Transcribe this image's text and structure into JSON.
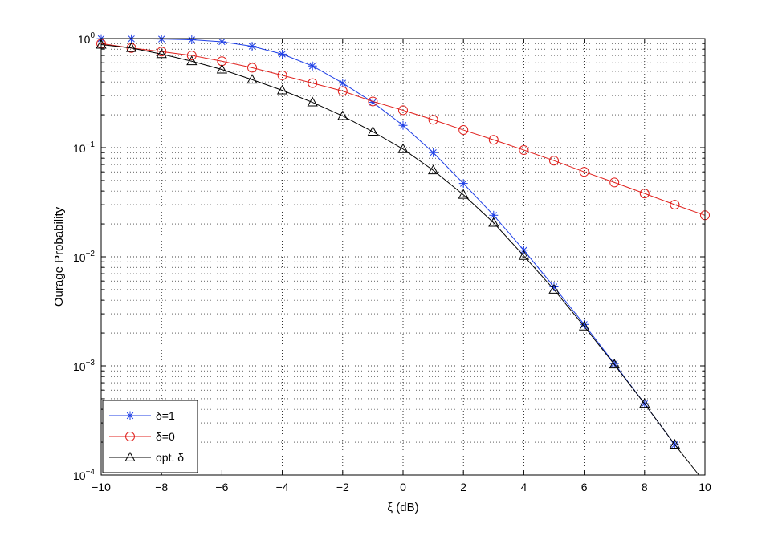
{
  "chart_data": {
    "type": "line",
    "title": "",
    "xlabel": "ξ (dB)",
    "ylabel": "Ourage Probability",
    "xlim": [
      -10,
      10
    ],
    "ylim": [
      0.0001,
      1
    ],
    "yscale": "log",
    "grid": true,
    "legend_position": "bottom-left",
    "x_ticks": [
      "−10",
      "−8",
      "−6",
      "−4",
      "−2",
      "0",
      "2",
      "4",
      "6",
      "8",
      "10"
    ],
    "y_ticks": [
      {
        "base": "10",
        "exp": "0"
      },
      {
        "base": "10",
        "exp": "−1"
      },
      {
        "base": "10",
        "exp": "−2"
      },
      {
        "base": "10",
        "exp": "−3"
      },
      {
        "base": "10",
        "exp": "−4"
      }
    ],
    "series": [
      {
        "name": "δ=1",
        "color": "#1f3fe6",
        "marker": "star",
        "x": [
          -10,
          -9,
          -8,
          -7,
          -6,
          -5,
          -4,
          -3,
          -2,
          -1,
          0,
          1,
          2,
          3,
          4,
          5,
          6,
          7,
          8,
          9
        ],
        "y": [
          0.998,
          0.995,
          0.99,
          0.975,
          0.935,
          0.85,
          0.72,
          0.56,
          0.39,
          0.26,
          0.16,
          0.09,
          0.047,
          0.024,
          0.0115,
          0.0053,
          0.0024,
          0.00105,
          0.00045,
          0.00019
        ]
      },
      {
        "name": "δ=0",
        "color": "#e0201c",
        "marker": "circle",
        "x": [
          -10,
          -9,
          -8,
          -7,
          -6,
          -5,
          -4,
          -3,
          -2,
          -1,
          0,
          1,
          2,
          3,
          4,
          5,
          6,
          7,
          8,
          9,
          10
        ],
        "y": [
          0.9,
          0.82,
          0.76,
          0.7,
          0.62,
          0.54,
          0.46,
          0.39,
          0.33,
          0.265,
          0.22,
          0.18,
          0.145,
          0.118,
          0.095,
          0.076,
          0.06,
          0.048,
          0.038,
          0.03,
          0.024
        ]
      },
      {
        "name": "opt. δ",
        "color": "#000000",
        "marker": "triangle",
        "x": [
          -10,
          -9,
          -8,
          -7,
          -6,
          -5,
          -4,
          -3,
          -2,
          -1,
          0,
          1,
          2,
          3,
          4,
          5,
          6,
          7,
          8,
          9,
          9.8
        ],
        "y": [
          0.88,
          0.82,
          0.72,
          0.62,
          0.52,
          0.42,
          0.335,
          0.26,
          0.195,
          0.14,
          0.097,
          0.062,
          0.037,
          0.0205,
          0.0102,
          0.005,
          0.0023,
          0.00103,
          0.00045,
          0.00019,
          0.0001
        ]
      }
    ]
  }
}
